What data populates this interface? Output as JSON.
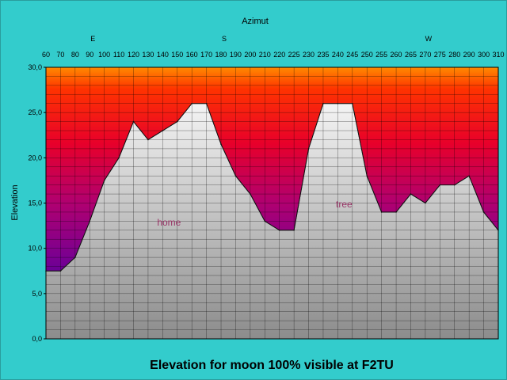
{
  "chart_data": {
    "type": "area",
    "title": "Elevation for moon 100% visible at F2TU",
    "xlabel": "Azimut",
    "ylabel": "Elevation",
    "x": [
      60,
      70,
      80,
      90,
      100,
      110,
      120,
      130,
      140,
      150,
      160,
      170,
      180,
      190,
      200,
      210,
      220,
      225,
      230,
      235,
      240,
      245,
      250,
      255,
      260,
      265,
      270,
      275,
      280,
      290,
      300,
      310
    ],
    "values": [
      7.5,
      7.5,
      9,
      13,
      17.5,
      20,
      24,
      22,
      23,
      24,
      26,
      26,
      21.5,
      18,
      16,
      13,
      12,
      12,
      21,
      26,
      26,
      26,
      18,
      14,
      14,
      16,
      15,
      17,
      17,
      18,
      14,
      12
    ],
    "ylim": [
      0,
      30
    ],
    "ytick_labels": [
      "0,0",
      "5,0",
      "10,0",
      "15,0",
      "20,0",
      "25,0",
      "30,0"
    ],
    "ytick_values": [
      0,
      5,
      10,
      15,
      20,
      25,
      30
    ],
    "directions": [
      {
        "label": "E",
        "azimuth": 90
      },
      {
        "label": "S",
        "azimuth": 180
      },
      {
        "label": "W",
        "azimuth": 270
      }
    ],
    "annotations": [
      {
        "text": "home",
        "azimuth": 140,
        "elevation": 12.5
      },
      {
        "text": "tree",
        "azimuth": 240,
        "elevation": 14.5
      }
    ],
    "grid": true
  }
}
